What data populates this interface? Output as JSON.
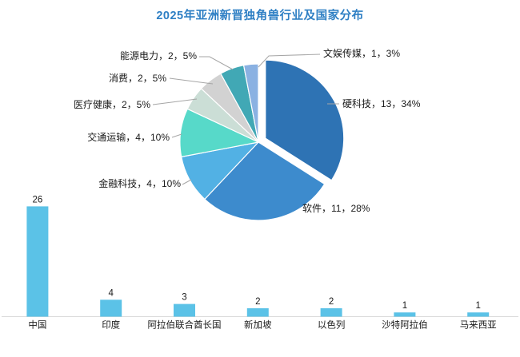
{
  "title": "2025年亚洲新晋独角兽行业及国家分布",
  "colors": {
    "title": "#2e7fc4",
    "bar": "#5bc2e7",
    "axis_line": "#d9d9d9",
    "leader_line": "#a6a6a6",
    "label_text": "#1a1a1a"
  },
  "chart_data": [
    {
      "type": "pie",
      "label_format": "名称，数量，百分比%",
      "legend_position": "none",
      "slices": [
        {
          "label": "硬科技",
          "value": 13,
          "pct": 34,
          "color": "#2e73b4",
          "exploded": true
        },
        {
          "label": "软件",
          "value": 11,
          "pct": 28,
          "color": "#3d8bcd",
          "exploded": false
        },
        {
          "label": "金融科技",
          "value": 4,
          "pct": 10,
          "color": "#52b1e4",
          "exploded": false
        },
        {
          "label": "交通运输",
          "value": 4,
          "pct": 10,
          "color": "#57d9c9",
          "exploded": false
        },
        {
          "label": "医疗健康",
          "value": 2,
          "pct": 5,
          "color": "#cbded6",
          "exploded": false
        },
        {
          "label": "消费",
          "value": 2,
          "pct": 5,
          "color": "#d2d2d2",
          "exploded": false
        },
        {
          "label": "能源电力",
          "value": 2,
          "pct": 5,
          "color": "#41a8b5",
          "exploded": false
        },
        {
          "label": "文娱传媒",
          "value": 1,
          "pct": 3,
          "color": "#8ab1e2",
          "exploded": false
        }
      ]
    },
    {
      "type": "bar",
      "categories": [
        "中国",
        "印度",
        "阿拉伯联合酋长国",
        "新加坡",
        "以色列",
        "沙特阿拉伯",
        "马来西亚"
      ],
      "values": [
        26,
        4,
        3,
        2,
        2,
        1,
        1
      ],
      "gridlines": false,
      "value_labels": true
    }
  ]
}
